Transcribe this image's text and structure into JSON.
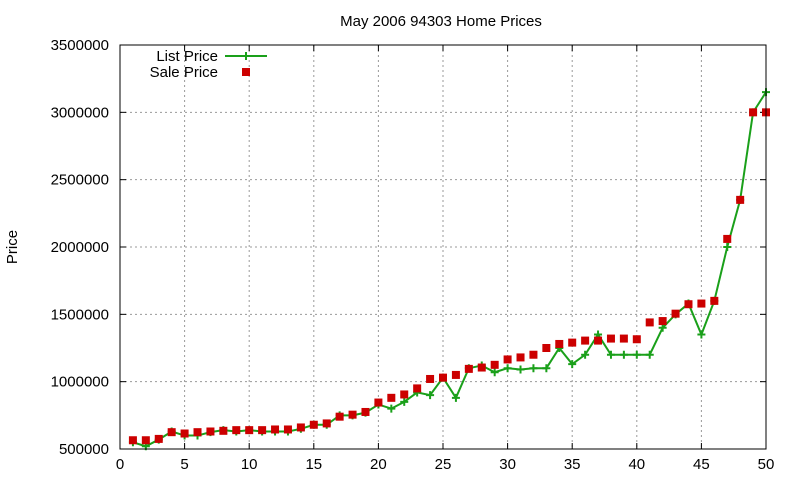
{
  "chart_data": {
    "type": "line",
    "title": "May 2006 94303 Home Prices",
    "ylabel": "Price",
    "xlabel": "",
    "xlim": [
      0,
      50
    ],
    "ylim": [
      500000,
      3500000
    ],
    "x_ticks": [
      0,
      5,
      10,
      15,
      20,
      25,
      30,
      35,
      40,
      45,
      50
    ],
    "y_ticks": [
      500000,
      1000000,
      1500000,
      2000000,
      2500000,
      3000000,
      3500000
    ],
    "grid": true,
    "legend_position": "top-left",
    "x": [
      1,
      2,
      3,
      4,
      5,
      6,
      7,
      8,
      9,
      10,
      11,
      12,
      13,
      14,
      15,
      16,
      17,
      18,
      19,
      20,
      21,
      22,
      23,
      24,
      25,
      26,
      27,
      28,
      29,
      30,
      31,
      32,
      33,
      34,
      35,
      36,
      37,
      38,
      39,
      40,
      41,
      42,
      43,
      44,
      45,
      46,
      47,
      48,
      49,
      50
    ],
    "series": [
      {
        "name": "List Price",
        "style": "line-plus",
        "color": "#1aa01a",
        "values": [
          550000,
          520000,
          570000,
          630000,
          600000,
          600000,
          625000,
          640000,
          630000,
          640000,
          630000,
          630000,
          630000,
          650000,
          680000,
          680000,
          750000,
          750000,
          770000,
          830000,
          800000,
          850000,
          920000,
          900000,
          1030000,
          880000,
          1100000,
          1120000,
          1070000,
          1100000,
          1090000,
          1100000,
          1100000,
          1250000,
          1130000,
          1200000,
          1350000,
          1200000,
          1200000,
          1200000,
          1200000,
          1400000,
          1500000,
          1580000,
          1350000,
          1600000,
          2000000,
          2350000,
          3000000,
          3150000
        ]
      },
      {
        "name": "Sale Price",
        "style": "square-markers",
        "color": "#cc0000",
        "values": [
          565000,
          565000,
          575000,
          625000,
          615000,
          625000,
          630000,
          635000,
          640000,
          640000,
          640000,
          645000,
          645000,
          660000,
          680000,
          690000,
          740000,
          755000,
          775000,
          845000,
          880000,
          905000,
          950000,
          1020000,
          1030000,
          1050000,
          1095000,
          1105000,
          1125000,
          1165000,
          1180000,
          1200000,
          1250000,
          1280000,
          1290000,
          1305000,
          1305000,
          1320000,
          1320000,
          1315000,
          1440000,
          1450000,
          1505000,
          1575000,
          1580000,
          1600000,
          2060000,
          2350000,
          3000000,
          3000000
        ]
      }
    ]
  }
}
